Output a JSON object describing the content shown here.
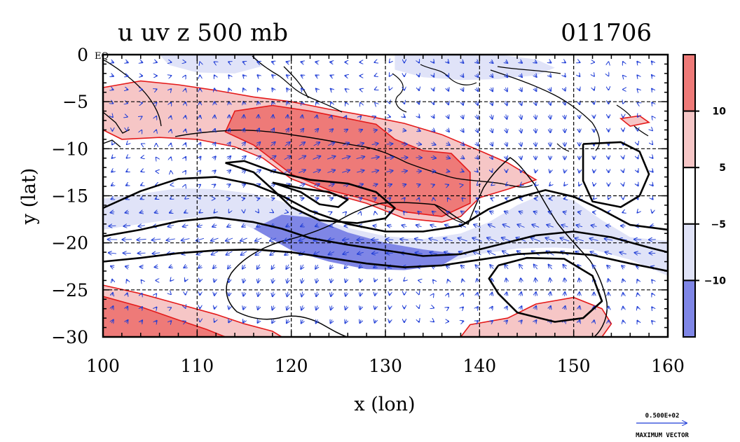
{
  "chart_data": {
    "type": "heatmap",
    "title": "u uv z 500 mb",
    "date_label": "011706",
    "xlabel": "x (lon)",
    "ylabel": "y (lat)",
    "xlim": [
      100,
      160
    ],
    "ylim": [
      -30,
      0
    ],
    "x_ticks": [
      100,
      110,
      120,
      130,
      140,
      150,
      160
    ],
    "y_ticks": [
      0,
      -5,
      -10,
      -15,
      -20,
      -25,
      -30
    ],
    "y_tick_labels": [
      "0",
      "−5",
      "−10",
      "−15",
      "−20",
      "−25",
      "−30"
    ],
    "eq_label": "EQ",
    "grid": true,
    "colorbar": {
      "levels": [
        -10,
        -5,
        5,
        10
      ],
      "labels": [
        "−10",
        "−5",
        "5",
        "10"
      ],
      "colors": [
        "#7f86e6",
        "#e0e3f8",
        "#ffffff",
        "#f6c6c6",
        "#ee7a78"
      ]
    },
    "shaded_u_regions": [
      {
        "sign": "positive",
        "level": "5-10",
        "polygon": [
          [
            100,
            -3.5
          ],
          [
            104,
            -2.8
          ],
          [
            108,
            -3.2
          ],
          [
            112,
            -3.8
          ],
          [
            116,
            -4.5
          ],
          [
            120,
            -5
          ],
          [
            124,
            -5.8
          ],
          [
            128,
            -6.5
          ],
          [
            132,
            -7.3
          ],
          [
            136,
            -8.5
          ],
          [
            140,
            -10.2
          ],
          [
            143,
            -11.5
          ],
          [
            146,
            -13.3
          ],
          [
            143,
            -14.3
          ],
          [
            140,
            -15.2
          ],
          [
            138,
            -17.2
          ],
          [
            136,
            -17.8
          ],
          [
            132,
            -17.4
          ],
          [
            128,
            -15.8
          ],
          [
            124,
            -14.7
          ],
          [
            120,
            -13.2
          ],
          [
            117,
            -11
          ],
          [
            114,
            -9.8
          ],
          [
            110,
            -9
          ],
          [
            106,
            -8.8
          ],
          [
            102,
            -9
          ],
          [
            100,
            -8
          ]
        ]
      },
      {
        "sign": "positive",
        "level": ">10",
        "polygon": [
          [
            114,
            -6
          ],
          [
            118,
            -5.4
          ],
          [
            122,
            -6
          ],
          [
            126,
            -6.8
          ],
          [
            129,
            -7.4
          ],
          [
            131,
            -9
          ],
          [
            134,
            -10.2
          ],
          [
            137,
            -10.5
          ],
          [
            139,
            -12.5
          ],
          [
            139,
            -15.8
          ],
          [
            136,
            -17.2
          ],
          [
            132,
            -16.7
          ],
          [
            128,
            -15.4
          ],
          [
            124,
            -14.4
          ],
          [
            120,
            -12.7
          ],
          [
            116,
            -9.6
          ],
          [
            113,
            -8.2
          ]
        ]
      },
      {
        "sign": "positive",
        "level": "5-10",
        "polygon": [
          [
            100,
            -24.5
          ],
          [
            104,
            -25.4
          ],
          [
            108,
            -26.5
          ],
          [
            112,
            -27.6
          ],
          [
            115,
            -28.6
          ],
          [
            118,
            -29.4
          ],
          [
            119,
            -30
          ],
          [
            100,
            -30
          ]
        ]
      },
      {
        "sign": "positive",
        "level": ">10",
        "polygon": [
          [
            100,
            -25.7
          ],
          [
            104,
            -26.8
          ],
          [
            108,
            -28.2
          ],
          [
            111,
            -29.2
          ],
          [
            113,
            -30
          ],
          [
            100,
            -30
          ]
        ]
      },
      {
        "sign": "positive",
        "level": "5-10",
        "polygon": [
          [
            138,
            -30
          ],
          [
            139,
            -28.7
          ],
          [
            143,
            -28
          ],
          [
            146,
            -26.5
          ],
          [
            150,
            -25.8
          ],
          [
            153,
            -27
          ],
          [
            154,
            -28.6
          ],
          [
            153,
            -30
          ]
        ]
      },
      {
        "sign": "positive",
        "level": "5-10",
        "polygon": [
          [
            155,
            -6.8
          ],
          [
            157,
            -6.5
          ],
          [
            158,
            -7.2
          ],
          [
            156,
            -7.6
          ]
        ]
      },
      {
        "sign": "negative",
        "level": "-5 to -10",
        "polygon": [
          [
            100,
            -15.3
          ],
          [
            104,
            -14.8
          ],
          [
            108,
            -14.2
          ],
          [
            112,
            -14.3
          ],
          [
            116,
            -14.8
          ],
          [
            119,
            -15.6
          ],
          [
            122,
            -17
          ],
          [
            126,
            -18.4
          ],
          [
            130,
            -19.3
          ],
          [
            134,
            -19.6
          ],
          [
            138,
            -19
          ],
          [
            141,
            -17.8
          ],
          [
            144,
            -16
          ],
          [
            147,
            -14.7
          ],
          [
            150,
            -15.5
          ],
          [
            153,
            -17.6
          ],
          [
            156,
            -19.4
          ],
          [
            160,
            -19.8
          ],
          [
            160,
            -23.5
          ],
          [
            156,
            -21.8
          ],
          [
            152,
            -20.7
          ],
          [
            148,
            -20.5
          ],
          [
            144,
            -20.6
          ],
          [
            140,
            -21.2
          ],
          [
            136,
            -22.2
          ],
          [
            132,
            -22.8
          ],
          [
            128,
            -22.6
          ],
          [
            124,
            -21.6
          ],
          [
            120,
            -20.3
          ],
          [
            117,
            -19
          ],
          [
            114,
            -17.6
          ],
          [
            110,
            -17.3
          ],
          [
            106,
            -17.7
          ],
          [
            102,
            -18.3
          ],
          [
            100,
            -18.6
          ]
        ]
      },
      {
        "sign": "negative",
        "level": "< -10",
        "polygon": [
          [
            116,
            -18.5
          ],
          [
            119,
            -17
          ],
          [
            122,
            -17.3
          ],
          [
            126,
            -18.9
          ],
          [
            130,
            -20
          ],
          [
            134,
            -20.7
          ],
          [
            138,
            -21.2
          ],
          [
            136,
            -22.4
          ],
          [
            132,
            -22.9
          ],
          [
            128,
            -22.8
          ],
          [
            124,
            -22
          ],
          [
            120,
            -20.8
          ]
        ]
      },
      {
        "sign": "negative",
        "level": "-5 to -10",
        "polygon": [
          [
            131,
            0
          ],
          [
            142,
            0
          ],
          [
            146,
            -0.5
          ],
          [
            148,
            -1.4
          ],
          [
            146,
            -2.2
          ],
          [
            142,
            -2.6
          ],
          [
            138,
            -2.7
          ],
          [
            134,
            -2.4
          ],
          [
            131,
            -1.6
          ]
        ]
      },
      {
        "sign": "negative",
        "level": "-5 to -10",
        "polygon": [
          [
            106,
            0
          ],
          [
            116,
            0
          ],
          [
            117,
            -1.2
          ],
          [
            114,
            -2
          ],
          [
            110,
            -1.9
          ],
          [
            107,
            -1.1
          ]
        ]
      }
    ],
    "geopotential_contours": [
      [
        [
          100,
          -16.3
        ],
        [
          104,
          -14.5
        ],
        [
          108,
          -13.2
        ],
        [
          112,
          -13
        ],
        [
          116,
          -13.8
        ],
        [
          119,
          -15
        ],
        [
          122,
          -16.6
        ],
        [
          126,
          -18
        ],
        [
          130,
          -18.8
        ],
        [
          134,
          -18.8
        ],
        [
          138,
          -18.2
        ],
        [
          141,
          -16.4
        ],
        [
          144,
          -15.2
        ],
        [
          147,
          -14.4
        ],
        [
          150,
          -15.1
        ],
        [
          153,
          -16.5
        ],
        [
          156,
          -18.1
        ],
        [
          160,
          -18.6
        ]
      ],
      [
        [
          100,
          -19.3
        ],
        [
          104,
          -18.6
        ],
        [
          108,
          -17.7
        ],
        [
          112,
          -17.3
        ],
        [
          116,
          -17.8
        ],
        [
          119,
          -18.5
        ],
        [
          122,
          -19.5
        ],
        [
          126,
          -20.2
        ],
        [
          130,
          -20.8
        ],
        [
          134,
          -21.4
        ],
        [
          138,
          -21.2
        ],
        [
          142,
          -20.2
        ],
        [
          146,
          -19.2
        ],
        [
          150,
          -18.8
        ],
        [
          154,
          -19.4
        ],
        [
          158,
          -20.5
        ],
        [
          160,
          -21
        ]
      ],
      [
        [
          100,
          -22
        ],
        [
          104,
          -21.6
        ],
        [
          108,
          -21.1
        ],
        [
          112,
          -20.8
        ],
        [
          116,
          -20.7
        ],
        [
          120,
          -21
        ],
        [
          124,
          -21.6
        ],
        [
          128,
          -22.2
        ],
        [
          132,
          -22.6
        ],
        [
          136,
          -22.4
        ],
        [
          140,
          -21.8
        ],
        [
          144,
          -21.2
        ],
        [
          148,
          -21
        ],
        [
          152,
          -21.3
        ],
        [
          156,
          -22.2
        ],
        [
          160,
          -23
        ]
      ],
      [
        [
          113,
          -11.5
        ],
        [
          116,
          -12.5
        ],
        [
          118,
          -14.3
        ],
        [
          120,
          -16.2
        ],
        [
          123,
          -17.6
        ],
        [
          127,
          -17.9
        ],
        [
          130,
          -17.4
        ],
        [
          131,
          -16.3
        ],
        [
          129,
          -14.6
        ],
        [
          126,
          -13.7
        ],
        [
          122,
          -13.3
        ],
        [
          118,
          -12.4
        ],
        [
          115,
          -11.3
        ],
        [
          113,
          -11.5
        ]
      ],
      [
        [
          118,
          -13.6
        ],
        [
          121,
          -14.6
        ],
        [
          123,
          -15.9
        ],
        [
          125,
          -16.2
        ],
        [
          126,
          -15.4
        ],
        [
          124,
          -14.6
        ],
        [
          121,
          -14.2
        ],
        [
          118,
          -13.6
        ]
      ],
      [
        [
          142,
          -22.4
        ],
        [
          145,
          -21.6
        ],
        [
          149,
          -21.7
        ],
        [
          152,
          -23.5
        ],
        [
          153,
          -26.2
        ],
        [
          151,
          -28
        ],
        [
          148,
          -28.4
        ],
        [
          144,
          -27.4
        ],
        [
          142,
          -25.4
        ],
        [
          141,
          -23.8
        ],
        [
          142,
          -22.4
        ]
      ],
      [
        [
          151,
          -9.5
        ],
        [
          155,
          -9.3
        ],
        [
          157,
          -10.3
        ],
        [
          158,
          -12.7
        ],
        [
          157,
          -15
        ],
        [
          155,
          -16.2
        ],
        [
          152,
          -15.6
        ],
        [
          151,
          -13.4
        ],
        [
          151,
          -11.5
        ],
        [
          151,
          -9.5
        ]
      ]
    ]
  },
  "reference_vector": {
    "value_label": "0.500E+02",
    "caption": "MAXIMUM VECTOR"
  },
  "colors": {
    "positive_strong": "#ee7a78",
    "positive_weak": "#f6c6c6",
    "negative_weak": "#e0e3f8",
    "negative_strong": "#7f86e6",
    "wind_vectors": "#1e3cd6",
    "positive_contour": "#e41a1a",
    "height_contour": "#000000",
    "coastline": "#000000"
  }
}
